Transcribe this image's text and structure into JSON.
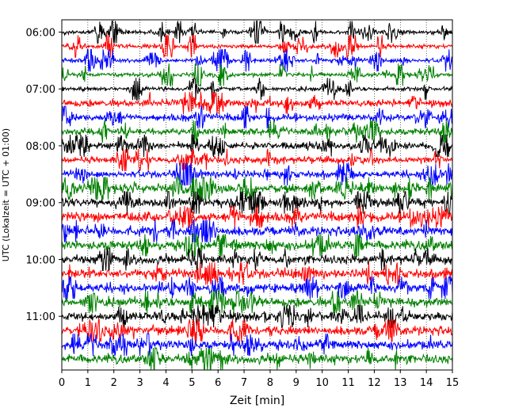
{
  "chart_data": {
    "type": "line",
    "subtype": "helicorder-seismogram",
    "xlabel": "Zeit  [min]",
    "ylabel": "UTC (Lokalzeit = UTC + 01:00)",
    "xlim": [
      0,
      15
    ],
    "x_ticks": [
      "0",
      "1",
      "2",
      "3",
      "4",
      "5",
      "6",
      "7",
      "8",
      "9",
      "10",
      "11",
      "12",
      "13",
      "14",
      "15"
    ],
    "y_ticks": [
      "06:00",
      "07:00",
      "08:00",
      "09:00",
      "10:00",
      "11:00"
    ],
    "trace_interval_minutes": 15,
    "trace_start": "06:00",
    "trace_count": 24,
    "trace_colors": [
      "#000000",
      "#ff0000",
      "#0000ff",
      "#008000"
    ],
    "grid": "vertical-dotted"
  }
}
